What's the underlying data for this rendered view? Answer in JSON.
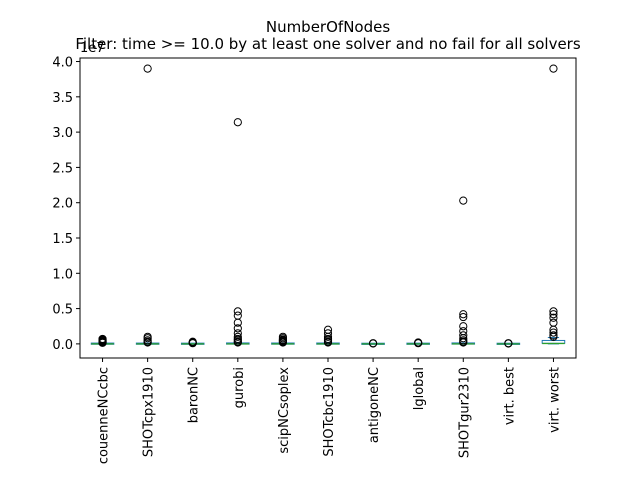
{
  "chart_data": {
    "type": "box",
    "title": "NumberOfNodes",
    "subtitle": "Filter: time >= 10.0 by at least one solver and no fail for all solvers",
    "xlabel": "",
    "ylabel": "",
    "y_offset_label": "1e7",
    "ylim": [
      -0.2,
      4.05
    ],
    "yticks": [
      0.0,
      0.5,
      1.0,
      1.5,
      2.0,
      2.5,
      3.0,
      3.5,
      4.0
    ],
    "grid": false,
    "box_color": "#1f77b4",
    "median_color": "#2ca02c",
    "categories": [
      "couenneNCcbc",
      "SHOTcpx1910",
      "baronNC",
      "gurobi",
      "scipNCsoplex",
      "SHOTcbc1910",
      "antigoneNC",
      "lglobal",
      "SHOTgur2310",
      "virt. best",
      "virt. worst"
    ],
    "boxes": [
      {
        "q1": 0.0,
        "median": 0.0,
        "q3": 0.003,
        "whisker_low": 0.0,
        "whisker_high": 0.007,
        "outliers": [
          0.07,
          0.06,
          0.05,
          0.04,
          0.035,
          0.03,
          0.025,
          0.02,
          0.015
        ]
      },
      {
        "q1": 0.0,
        "median": 0.0,
        "q3": 0.003,
        "whisker_low": 0.0,
        "whisker_high": 0.007,
        "outliers": [
          3.9,
          0.1,
          0.08,
          0.05,
          0.03,
          0.02
        ]
      },
      {
        "q1": 0.0,
        "median": 0.0,
        "q3": 0.002,
        "whisker_low": 0.0,
        "whisker_high": 0.005,
        "outliers": [
          0.03,
          0.02,
          0.015,
          0.01
        ]
      },
      {
        "q1": 0.0,
        "median": 0.0,
        "q3": 0.005,
        "whisker_low": 0.0,
        "whisker_high": 0.012,
        "outliers": [
          3.14,
          0.46,
          0.4,
          0.3,
          0.22,
          0.15,
          0.1,
          0.07,
          0.05,
          0.03,
          0.02
        ]
      },
      {
        "q1": 0.0,
        "median": 0.0,
        "q3": 0.004,
        "whisker_low": 0.0,
        "whisker_high": 0.009,
        "outliers": [
          0.1,
          0.08,
          0.06,
          0.05,
          0.04,
          0.03,
          0.02
        ]
      },
      {
        "q1": 0.0,
        "median": 0.0,
        "q3": 0.004,
        "whisker_low": 0.0,
        "whisker_high": 0.009,
        "outliers": [
          0.2,
          0.15,
          0.1,
          0.07,
          0.05,
          0.03,
          0.02
        ]
      },
      {
        "q1": 0.0,
        "median": 0.0,
        "q3": 0.001,
        "whisker_low": 0.0,
        "whisker_high": 0.002,
        "outliers": [
          0.01,
          0.005
        ]
      },
      {
        "q1": 0.0,
        "median": 0.0,
        "q3": 0.002,
        "whisker_low": 0.0,
        "whisker_high": 0.004,
        "outliers": [
          0.02,
          0.015,
          0.01
        ]
      },
      {
        "q1": 0.0,
        "median": 0.0,
        "q3": 0.005,
        "whisker_low": 0.0,
        "whisker_high": 0.012,
        "outliers": [
          2.03,
          0.42,
          0.38,
          0.25,
          0.18,
          0.12,
          0.08,
          0.05,
          0.03,
          0.02
        ]
      },
      {
        "q1": 0.0,
        "median": 0.0,
        "q3": 0.001,
        "whisker_low": 0.0,
        "whisker_high": 0.002,
        "outliers": [
          0.01,
          0.005
        ]
      },
      {
        "q1": 0.0,
        "median": 0.005,
        "q3": 0.04,
        "whisker_low": 0.0,
        "whisker_high": 0.09,
        "outliers": [
          3.9,
          0.46,
          0.42,
          0.37,
          0.3,
          0.2,
          0.16,
          0.12,
          0.1
        ]
      }
    ]
  }
}
